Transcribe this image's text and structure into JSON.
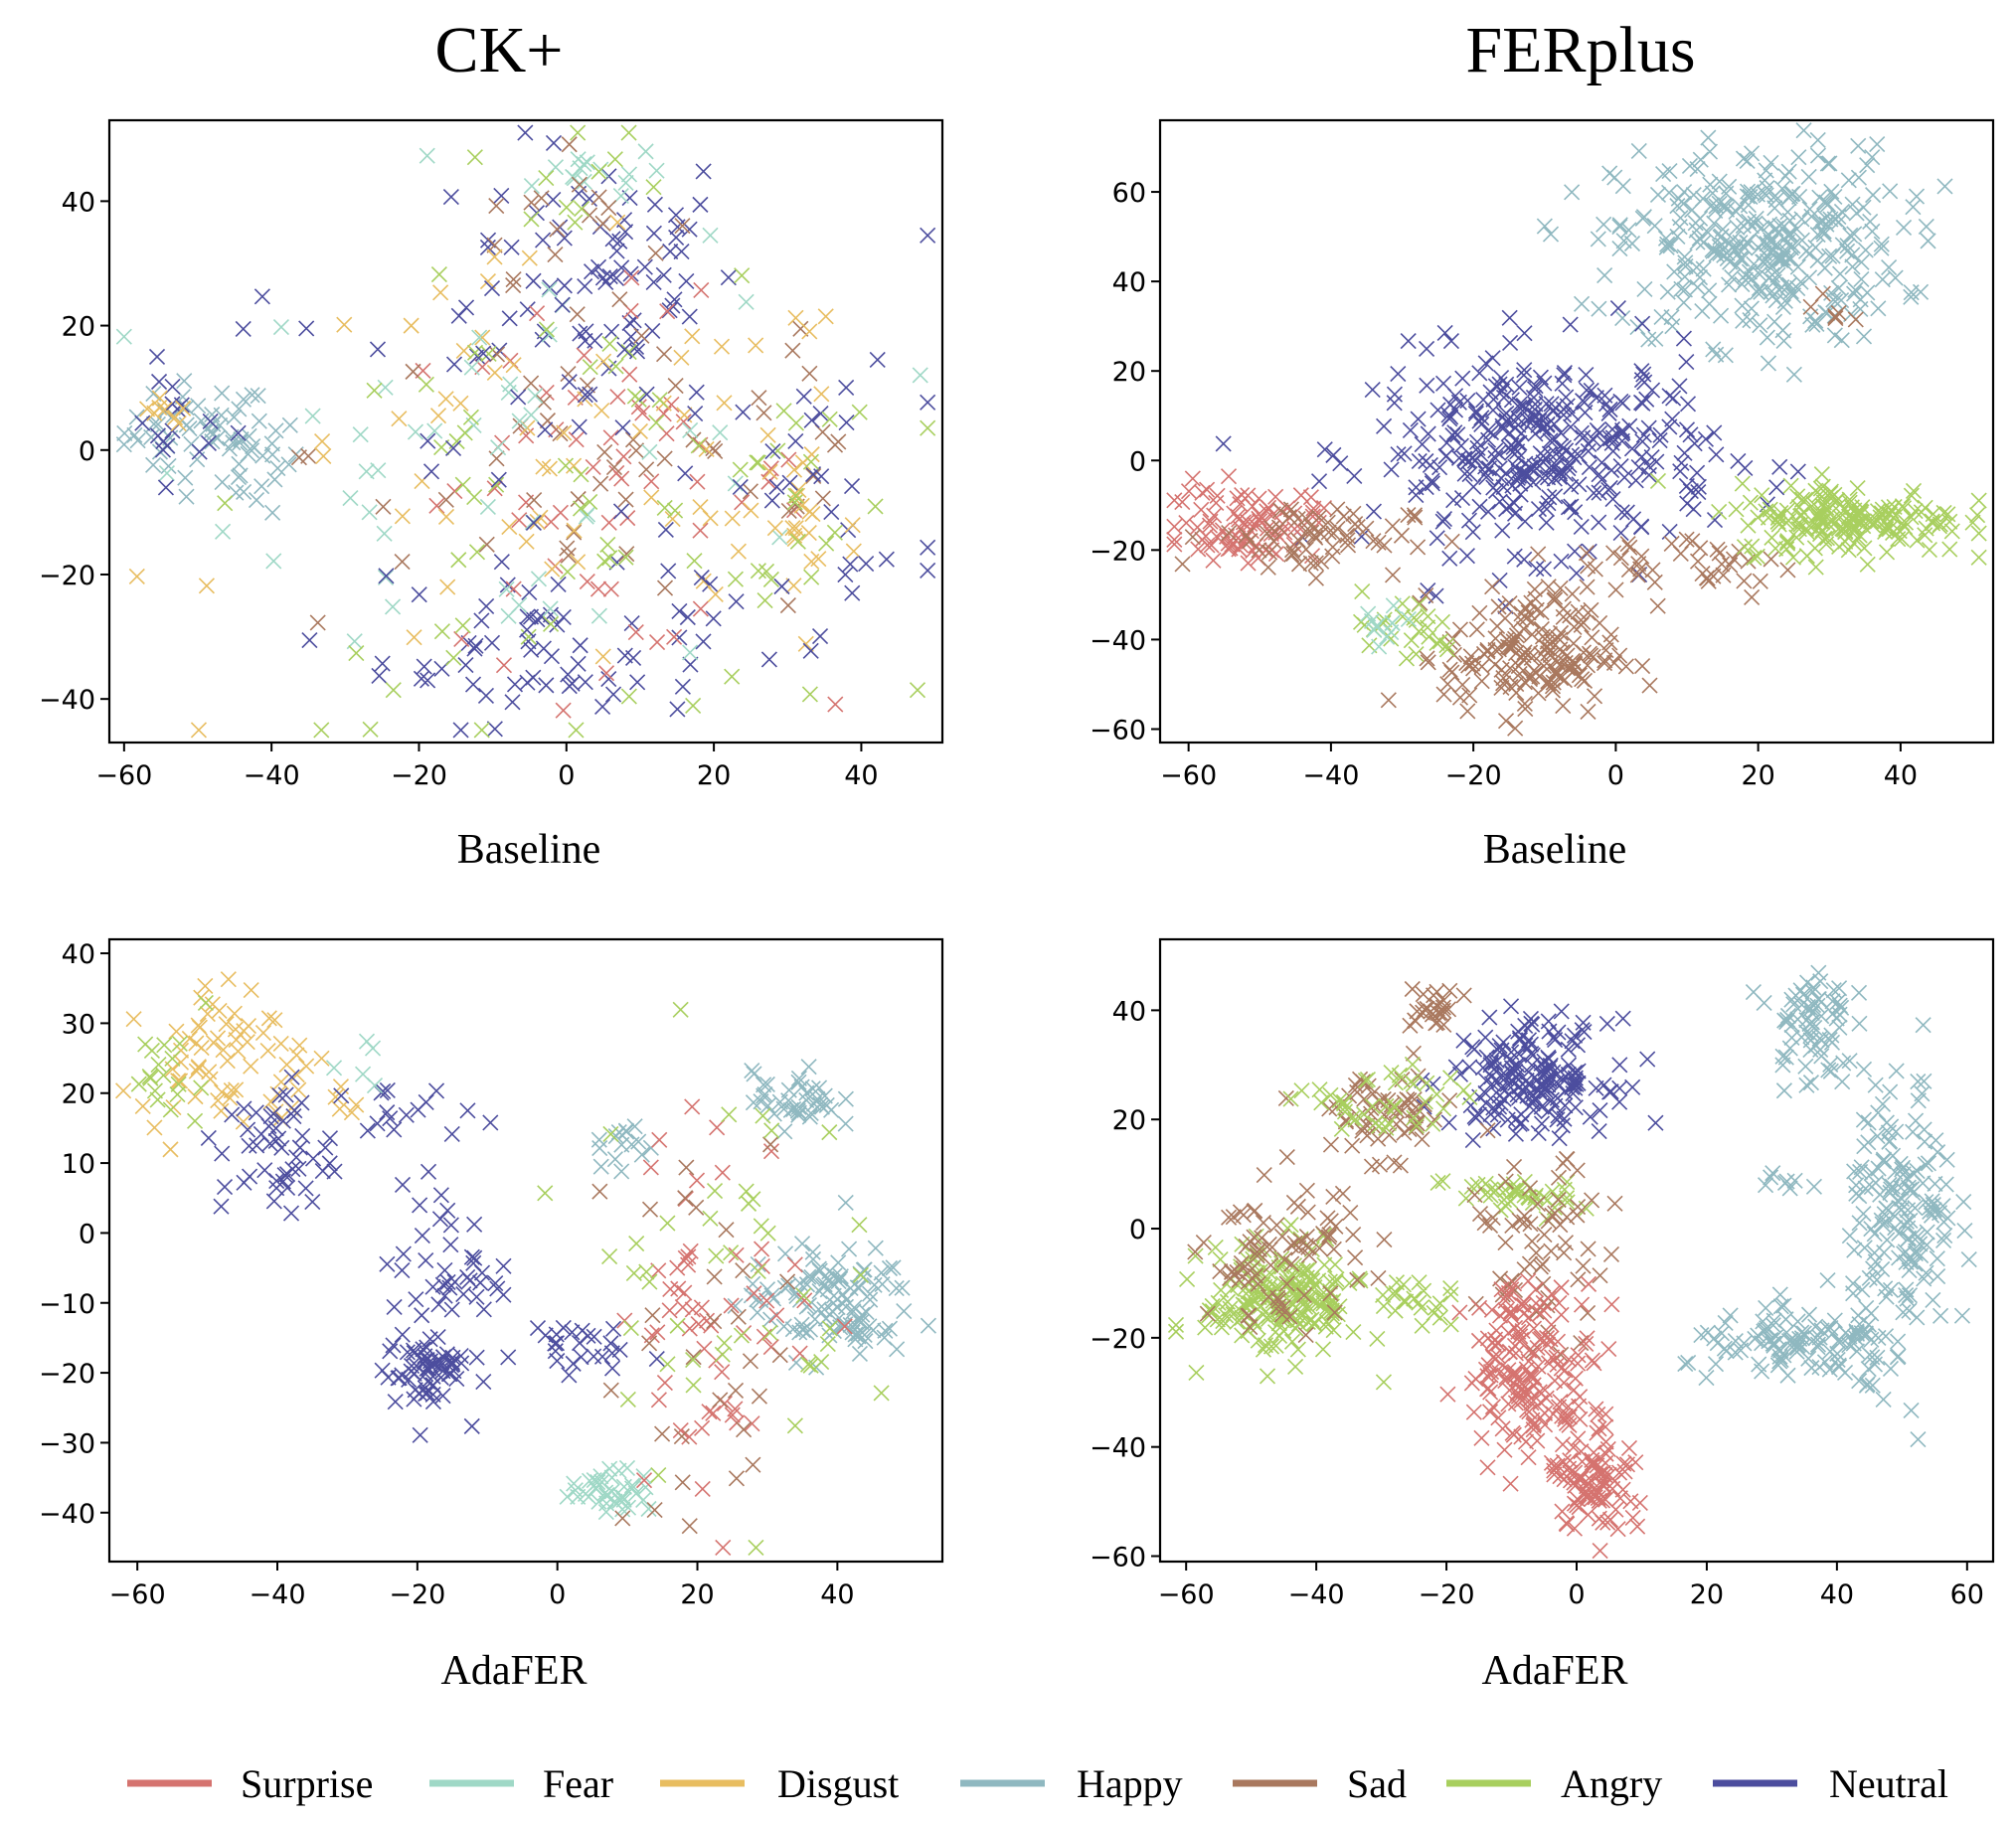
{
  "column_titles": [
    "CK+",
    "FERplus"
  ],
  "legend": [
    {
      "label": "Surprise",
      "color": "#d5736f"
    },
    {
      "label": "Fear",
      "color": "#9fd8c6"
    },
    {
      "label": "Disgust",
      "color": "#e8bd60"
    },
    {
      "label": "Happy",
      "color": "#8fb8c0"
    },
    {
      "label": "Sad",
      "color": "#a9785e"
    },
    {
      "label": "Angry",
      "color": "#a8cf5e"
    },
    {
      "label": "Neutral",
      "color": "#4c4d9e"
    }
  ],
  "chart_data": [
    {
      "type": "scatter",
      "dataset": "CK+",
      "xlabel": "Baseline",
      "xlim": [
        -62,
        51
      ],
      "ylim": [
        -47,
        53
      ],
      "xticks": [
        -60,
        -40,
        -20,
        0,
        20,
        40
      ],
      "yticks": [
        -40,
        -20,
        0,
        20,
        40
      ],
      "marker": "x",
      "clusters": [
        {
          "class": "Happy",
          "cx": -50,
          "cy": 3,
          "sx": 5,
          "sy": 4,
          "n": 45
        },
        {
          "class": "Happy",
          "cx": -42,
          "cy": -2,
          "sx": 3,
          "sy": 4,
          "n": 25
        },
        {
          "class": "Neutral",
          "cx": -53,
          "cy": 5,
          "sx": 4,
          "sy": 4,
          "n": 15
        },
        {
          "class": "Disgust",
          "cx": -55,
          "cy": 5,
          "sx": 2,
          "sy": 2,
          "n": 8
        },
        {
          "class": "Neutral",
          "cx": 5,
          "cy": 30,
          "sx": 9,
          "sy": 10,
          "n": 70
        },
        {
          "class": "Fear",
          "cx": 2,
          "cy": 45,
          "sx": 6,
          "sy": 2,
          "n": 15
        },
        {
          "class": "Sad",
          "cx": 0,
          "cy": 38,
          "sx": 7,
          "sy": 5,
          "n": 15
        },
        {
          "class": "Angry",
          "cx": 2,
          "cy": 40,
          "sx": 8,
          "sy": 6,
          "n": 12
        },
        {
          "class": "Neutral",
          "cx": -3,
          "cy": -32,
          "sx": 11,
          "sy": 6,
          "n": 60
        },
        {
          "class": "Surprise",
          "cx": 5,
          "cy": -5,
          "sx": 14,
          "sy": 14,
          "n": 60
        },
        {
          "class": "Sad",
          "cx": 10,
          "cy": 0,
          "sx": 22,
          "sy": 15,
          "n": 55
        },
        {
          "class": "Disgust",
          "cx": 0,
          "cy": -5,
          "sx": 22,
          "sy": 17,
          "n": 65
        },
        {
          "class": "Fear",
          "cx": -5,
          "cy": 0,
          "sx": 22,
          "sy": 18,
          "n": 50
        },
        {
          "class": "Angry",
          "cx": 0,
          "cy": -10,
          "sx": 20,
          "sy": 17,
          "n": 60
        },
        {
          "class": "Neutral",
          "cx": 0,
          "cy": 0,
          "sx": 26,
          "sy": 17,
          "n": 50
        },
        {
          "class": "Disgust",
          "cx": 32,
          "cy": -12,
          "sx": 4,
          "sy": 10,
          "n": 20
        },
        {
          "class": "Neutral",
          "cx": 35,
          "cy": -10,
          "sx": 7,
          "sy": 15,
          "n": 20
        },
        {
          "class": "Angry",
          "cx": 34,
          "cy": -5,
          "sx": 5,
          "sy": 12,
          "n": 15
        }
      ]
    },
    {
      "type": "scatter",
      "dataset": "FERplus",
      "xlabel": "Baseline",
      "xlim": [
        -64,
        53
      ],
      "ylim": [
        -63,
        76
      ],
      "xticks": [
        -60,
        -40,
        -20,
        0,
        20,
        40
      ],
      "yticks": [
        -60,
        -40,
        -20,
        0,
        20,
        40,
        60
      ],
      "marker": "x",
      "clusters": [
        {
          "class": "Happy",
          "cx": 20,
          "cy": 48,
          "sx": 10,
          "sy": 11,
          "n": 330
        },
        {
          "class": "Sad",
          "cx": 30,
          "cy": 35,
          "sx": 4,
          "sy": 4,
          "n": 6
        },
        {
          "class": "Neutral",
          "cx": -10,
          "cy": 2,
          "sx": 12,
          "sy": 11,
          "n": 360
        },
        {
          "class": "Surprise",
          "cx": -52,
          "cy": -14,
          "sx": 5,
          "sy": 4,
          "n": 90
        },
        {
          "class": "Sad",
          "cx": -43,
          "cy": -17,
          "sx": 7,
          "sy": 4,
          "n": 60
        },
        {
          "class": "Sad",
          "cx": -12,
          "cy": -43,
          "sx": 6,
          "sy": 7,
          "n": 170
        },
        {
          "class": "Sad",
          "cx": 10,
          "cy": -23,
          "sx": 8,
          "sy": 4,
          "n": 40
        },
        {
          "class": "Angry",
          "cx": 33,
          "cy": -13,
          "sx": 8,
          "sy": 4,
          "n": 180
        },
        {
          "class": "Angry",
          "cx": -30,
          "cy": -38,
          "sx": 4,
          "sy": 4,
          "n": 25
        },
        {
          "class": "Fear",
          "cx": -33,
          "cy": -37,
          "sx": 3,
          "sy": 3,
          "n": 12
        }
      ]
    },
    {
      "type": "scatter",
      "dataset": "CK+",
      "xlabel": "AdaFER",
      "xlim": [
        -64,
        55
      ],
      "ylim": [
        -47,
        42
      ],
      "xticks": [
        -60,
        -40,
        -20,
        0,
        20,
        40
      ],
      "yticks": [
        -40,
        -30,
        -20,
        -10,
        0,
        10,
        20,
        30,
        40
      ],
      "marker": "x",
      "clusters": [
        {
          "class": "Disgust",
          "cx": -50,
          "cy": 27,
          "sx": 5,
          "sy": 5,
          "n": 55
        },
        {
          "class": "Disgust",
          "cx": -35,
          "cy": 20,
          "sx": 5,
          "sy": 3,
          "n": 18
        },
        {
          "class": "Angry",
          "cx": -55,
          "cy": 22,
          "sx": 3,
          "sy": 4,
          "n": 18
        },
        {
          "class": "Neutral",
          "cx": -40,
          "cy": 12,
          "sx": 4,
          "sy": 5,
          "n": 50
        },
        {
          "class": "Neutral",
          "cx": -22,
          "cy": 17,
          "sx": 5,
          "sy": 2,
          "n": 15
        },
        {
          "class": "Neutral",
          "cx": -16,
          "cy": -5,
          "sx": 4,
          "sy": 6,
          "n": 45
        },
        {
          "class": "Neutral",
          "cx": -19,
          "cy": -20,
          "sx": 3,
          "sy": 3,
          "n": 60
        },
        {
          "class": "Neutral",
          "cx": 1,
          "cy": -16,
          "sx": 4,
          "sy": 2,
          "n": 25
        },
        {
          "class": "Happy",
          "cx": 39,
          "cy": -10,
          "sx": 6,
          "sy": 4,
          "n": 110
        },
        {
          "class": "Happy",
          "cx": 34,
          "cy": 19,
          "sx": 3,
          "sy": 2,
          "n": 40
        },
        {
          "class": "Happy",
          "cx": 9,
          "cy": 14,
          "sx": 2,
          "sy": 4,
          "n": 15
        },
        {
          "class": "Fear",
          "cx": 8,
          "cy": -37,
          "sx": 3,
          "sy": 1.5,
          "n": 40
        },
        {
          "class": "Surprise",
          "cx": 23,
          "cy": -10,
          "sx": 7,
          "sy": 13,
          "n": 60
        },
        {
          "class": "Sad",
          "cx": 22,
          "cy": -15,
          "sx": 8,
          "sy": 15,
          "n": 30
        },
        {
          "class": "Angry",
          "cx": 22,
          "cy": -5,
          "sx": 10,
          "sy": 15,
          "n": 45
        },
        {
          "class": "Fear",
          "cx": -30,
          "cy": 25,
          "sx": 3,
          "sy": 3,
          "n": 5
        }
      ]
    },
    {
      "type": "scatter",
      "dataset": "FERplus",
      "xlabel": "AdaFER",
      "xlim": [
        -64,
        64
      ],
      "ylim": [
        -61,
        53
      ],
      "xticks": [
        -60,
        -40,
        -20,
        0,
        20,
        40,
        60
      ],
      "yticks": [
        -60,
        -40,
        -20,
        0,
        20,
        40
      ],
      "marker": "x",
      "clusters": [
        {
          "class": "Happy",
          "cx": 36,
          "cy": 38,
          "sx": 3,
          "sy": 6,
          "n": 70
        },
        {
          "class": "Happy",
          "cx": 50,
          "cy": 2,
          "sx": 4,
          "sy": 13,
          "n": 170
        },
        {
          "class": "Happy",
          "cx": 35,
          "cy": -22,
          "sx": 9,
          "sy": 3,
          "n": 110
        },
        {
          "class": "Happy",
          "cx": 32,
          "cy": 9,
          "sx": 2,
          "sy": 2,
          "n": 8
        },
        {
          "class": "Neutral",
          "cx": -7,
          "cy": 28,
          "sx": 6,
          "sy": 5,
          "n": 180
        },
        {
          "class": "Sad",
          "cx": -22,
          "cy": 40,
          "sx": 2,
          "sy": 2,
          "n": 25
        },
        {
          "class": "Sad",
          "cx": -30,
          "cy": 21,
          "sx": 6,
          "sy": 4,
          "n": 60
        },
        {
          "class": "Angry",
          "cx": -30,
          "cy": 22,
          "sx": 6,
          "sy": 4,
          "n": 40
        },
        {
          "class": "Angry",
          "cx": -45,
          "cy": -13,
          "sx": 6,
          "sy": 5,
          "n": 200
        },
        {
          "class": "Angry",
          "cx": -25,
          "cy": -13,
          "sx": 3,
          "sy": 2,
          "n": 20
        },
        {
          "class": "Angry",
          "cx": -10,
          "cy": 6,
          "sx": 5,
          "sy": 2,
          "n": 40
        },
        {
          "class": "Sad",
          "cx": -45,
          "cy": -5,
          "sx": 6,
          "sy": 6,
          "n": 80
        },
        {
          "class": "Sad",
          "cx": -5,
          "cy": -5,
          "sx": 5,
          "sy": 8,
          "n": 60
        },
        {
          "class": "Surprise",
          "cx": -7,
          "cy": -25,
          "sx": 5,
          "sy": 8,
          "n": 170
        },
        {
          "class": "Surprise",
          "cx": 3,
          "cy": -45,
          "sx": 3,
          "sy": 6,
          "n": 90
        }
      ]
    }
  ]
}
